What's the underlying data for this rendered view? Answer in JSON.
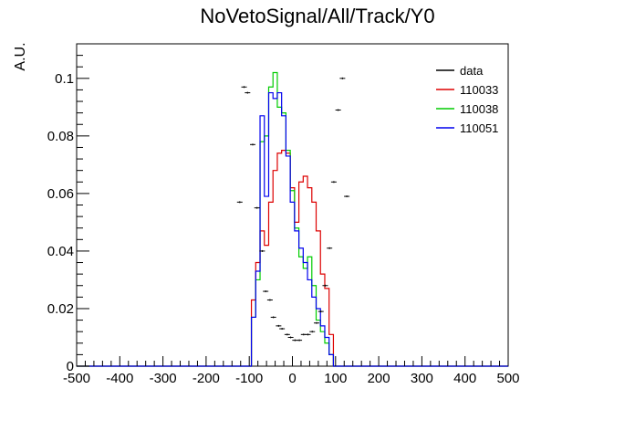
{
  "chart_data": {
    "type": "line",
    "title": "NoVetoSignal/All/Track/Y0",
    "xlabel": "",
    "ylabel": "A.U.",
    "xlim": [
      -500,
      500
    ],
    "ylim": [
      0,
      0.112
    ],
    "x_ticks": [
      -500,
      -400,
      -300,
      -200,
      -100,
      0,
      100,
      200,
      300,
      400,
      500
    ],
    "y_ticks": [
      0,
      0.02,
      0.04,
      0.06,
      0.08,
      0.1
    ],
    "y_tick_labels": [
      "0",
      "0.02",
      "0.04",
      "0.06",
      "0.08",
      "0.1"
    ],
    "grid": false,
    "legend_position": "top-right",
    "bin_edges": [
      -105,
      -95,
      -85,
      -75,
      -65,
      -55,
      -45,
      -35,
      -25,
      -15,
      -5,
      5,
      15,
      25,
      35,
      45,
      55,
      65,
      75,
      85,
      95,
      105
    ],
    "series": [
      {
        "name": "data",
        "kind": "points",
        "color": "#000000",
        "x": [
          -122,
          -112,
          -104,
          -92,
          -82,
          -70,
          -62,
          -52,
          -44,
          -32,
          -24,
          -12,
          -4,
          6,
          16,
          26,
          36,
          46,
          56,
          66,
          76,
          86,
          96,
          106,
          116,
          126
        ],
        "y": [
          0.057,
          0.097,
          0.095,
          0.077,
          0.055,
          0.04,
          0.026,
          0.023,
          0.017,
          0.014,
          0.013,
          0.011,
          0.01,
          0.009,
          0.009,
          0.011,
          0.011,
          0.012,
          0.015,
          0.019,
          0.028,
          0.041,
          0.064,
          0.089,
          0.1,
          0.059
        ]
      },
      {
        "name": "110033",
        "kind": "step",
        "color": "#dd0000",
        "values": [
          0.0,
          0.023,
          0.036,
          0.047,
          0.042,
          0.057,
          0.068,
          0.074,
          0.075,
          0.074,
          0.062,
          0.05,
          0.064,
          0.066,
          0.062,
          0.057,
          0.047,
          0.032,
          0.027,
          0.011,
          0.0
        ]
      },
      {
        "name": "110038",
        "kind": "step",
        "color": "#00cc00",
        "values": [
          0.0,
          0.017,
          0.03,
          0.078,
          0.08,
          0.097,
          0.102,
          0.09,
          0.088,
          0.075,
          0.061,
          0.048,
          0.038,
          0.034,
          0.038,
          0.028,
          0.016,
          0.012,
          0.008,
          0.004,
          0.0
        ]
      },
      {
        "name": "110051",
        "kind": "step",
        "color": "#0000ee",
        "values": [
          0.0,
          0.017,
          0.033,
          0.087,
          0.059,
          0.095,
          0.093,
          0.095,
          0.087,
          0.073,
          0.057,
          0.047,
          0.041,
          0.036,
          0.03,
          0.024,
          0.02,
          0.014,
          0.01,
          0.004,
          0.0
        ]
      }
    ]
  }
}
